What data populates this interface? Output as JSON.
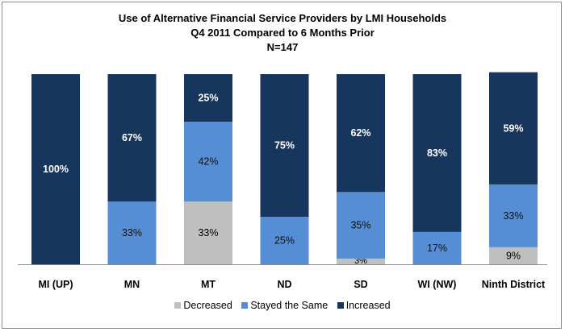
{
  "chart_data": {
    "type": "bar",
    "stacked": true,
    "percent_stacked": true,
    "title_lines": [
      "Use of Alternative Financial  Service Providers by LMI Households",
      "Q4 2011 Compared to 6 Months Prior",
      "N=147"
    ],
    "categories": [
      "MI (UP)",
      "MN",
      "MT",
      "ND",
      "SD",
      "WI (NW)",
      "Ninth District"
    ],
    "series": [
      {
        "name": "Decreased",
        "color": "#bfbfbf",
        "values": [
          0,
          0,
          33,
          0,
          3,
          0,
          9
        ],
        "labels": [
          "",
          "",
          "33%",
          "",
          "3%",
          "",
          "9%"
        ]
      },
      {
        "name": "Stayed the Same",
        "color": "#558ed5",
        "values": [
          0,
          33,
          42,
          25,
          35,
          17,
          33
        ],
        "labels": [
          "",
          "33%",
          "42%",
          "25%",
          "35%",
          "17%",
          "33%"
        ]
      },
      {
        "name": "Increased",
        "color": "#17365d",
        "values": [
          100,
          67,
          25,
          75,
          62,
          83,
          59
        ],
        "labels": [
          "100%",
          "67%",
          "25%",
          "75%",
          "62%",
          "83%",
          "59%"
        ]
      }
    ],
    "ylim": [
      0,
      100
    ],
    "legend_position": "bottom",
    "grid": false
  }
}
